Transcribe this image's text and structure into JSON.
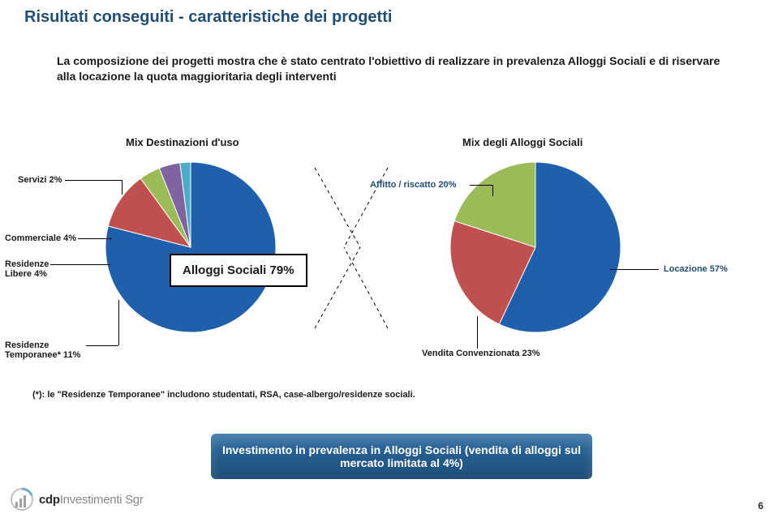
{
  "page": {
    "title": "Risultati conseguiti - caratteristiche dei progetti",
    "title_color": "#1f4e79",
    "title_fontsize": 20,
    "intro": "La composizione dei progetti mostra che è stato centrato l'obiettivo di realizzare in prevalenza Alloggi Sociali e di riservare alla locazione la quota maggioritaria degli interventi",
    "intro_fontsize": 14,
    "page_number": "6"
  },
  "chart_left": {
    "title": "Mix Destinazioni d'uso",
    "title_fontsize": 13,
    "type": "pie",
    "radius": 105,
    "background_color": "#ffffff",
    "slices": [
      {
        "label": "Alloggi Sociali 79%",
        "value": 79,
        "color": "#1f60ad"
      },
      {
        "label": "Residenze Temporanee* 11%",
        "value": 11,
        "color": "#c0504d"
      },
      {
        "label": "Residenze Libere 4%",
        "value": 4,
        "color": "#9bbb59"
      },
      {
        "label": "Commerciale 4%",
        "value": 4,
        "color": "#8064a2"
      },
      {
        "label": "Servizi 2%",
        "value": 2,
        "color": "#4bacc6"
      }
    ],
    "annotations": {
      "servizi": {
        "text": "Servizi 2%"
      },
      "commerciale": {
        "text": "Commerciale 4%"
      },
      "res_libere": {
        "text_l1": "Residenze",
        "text_l2": "Libere 4%"
      },
      "res_temp": {
        "text_l1": "Residenze",
        "text_l2": "Temporanee* 11%"
      },
      "alloggi_box": {
        "text": "Alloggi Sociali 79%",
        "fontsize": 15
      }
    }
  },
  "chart_right": {
    "title": "Mix degli Alloggi Sociali",
    "title_fontsize": 13,
    "type": "pie",
    "radius": 105,
    "background_color": "#ffffff",
    "slices": [
      {
        "label": "Locazione 57%",
        "value": 57,
        "color": "#1f60ad"
      },
      {
        "label": "Vendita Convenzionata 23%",
        "value": 23,
        "color": "#c0504d"
      },
      {
        "label": "Affitto / riscatto 20%",
        "value": 20,
        "color": "#9bbb59"
      }
    ],
    "annotations": {
      "affitto": {
        "text": "Affitto / riscatto 20%",
        "color": "#1f4e79"
      },
      "locazione": {
        "text": "Locazione 57%",
        "color": "#1f4e79"
      },
      "vendita": {
        "text": "Vendita Convenzionata 23%"
      }
    }
  },
  "note": {
    "text": "(*): le \"Residenze Temporanee\" includono studentati, RSA, case-albergo/residenze sociali.",
    "fontsize": 11
  },
  "capsule": {
    "text": "Investimento in prevalenza in Alloggi Sociali (vendita di alloggi sul mercato limitata al 4%)",
    "bg_color_top": "#2b6aa0",
    "bg_color_bottom": "#1f4e79",
    "text_color": "#ffffff",
    "fontsize": 14
  },
  "logo": {
    "text_bold": "cdp",
    "text_light": "Investimenti Sgr"
  }
}
